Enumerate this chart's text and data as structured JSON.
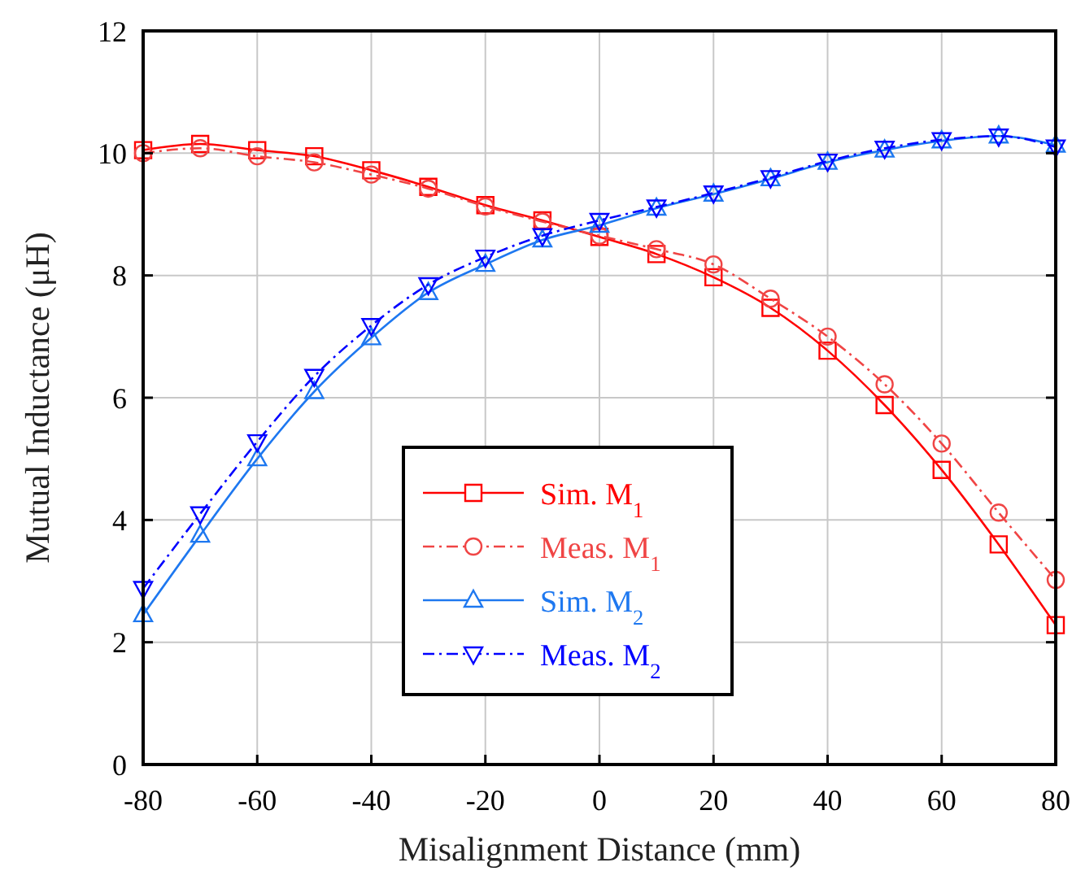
{
  "chart_data": {
    "type": "line",
    "xlabel": "Misalignment Distance (mm)",
    "ylabel": "Mutual Inductance (μH)",
    "x": [
      -80,
      -70,
      -60,
      -50,
      -40,
      -30,
      -20,
      -10,
      0,
      10,
      20,
      30,
      40,
      50,
      60,
      70,
      80
    ],
    "series": [
      {
        "name": "Sim. M$_{1}$",
        "color": "#ff0000",
        "marker": "square",
        "line_style": "solid",
        "values": [
          10.05,
          10.15,
          10.05,
          9.95,
          9.72,
          9.45,
          9.15,
          8.9,
          8.63,
          8.35,
          7.97,
          7.47,
          6.77,
          5.88,
          4.82,
          3.6,
          2.28
        ]
      },
      {
        "name": "Meas. M$_{1}$",
        "color": "#f04545",
        "marker": "circle",
        "line_style": "dashed",
        "values": [
          10.0,
          10.08,
          9.95,
          9.85,
          9.65,
          9.42,
          9.13,
          8.88,
          8.65,
          8.43,
          8.18,
          7.62,
          7.0,
          6.22,
          5.25,
          4.12,
          3.02
        ]
      },
      {
        "name": "Sim. M$_{2}$",
        "color": "#1e78f0",
        "marker": "triangle",
        "line_style": "solid",
        "values": [
          2.45,
          3.75,
          5.0,
          6.1,
          6.98,
          7.72,
          8.18,
          8.58,
          8.82,
          9.1,
          9.33,
          9.58,
          9.85,
          10.05,
          10.2,
          10.28,
          10.13
        ]
      },
      {
        "name": "Meas. M$_{2}$",
        "color": "#0000ff",
        "marker": "triangle-down",
        "line_style": "dashed",
        "values": [
          2.88,
          4.1,
          5.28,
          6.35,
          7.18,
          7.85,
          8.3,
          8.65,
          8.9,
          9.12,
          9.35,
          9.6,
          9.87,
          10.08,
          10.22,
          10.28,
          10.1
        ]
      }
    ],
    "xlim": [
      -80,
      80
    ],
    "xticks": [
      -80,
      -60,
      -40,
      -20,
      0,
      20,
      40,
      60,
      80
    ],
    "ylim": [
      0,
      12
    ],
    "yticks": [
      0,
      2,
      4,
      6,
      8,
      10,
      12
    ],
    "grid": true,
    "legend": "bottom"
  }
}
